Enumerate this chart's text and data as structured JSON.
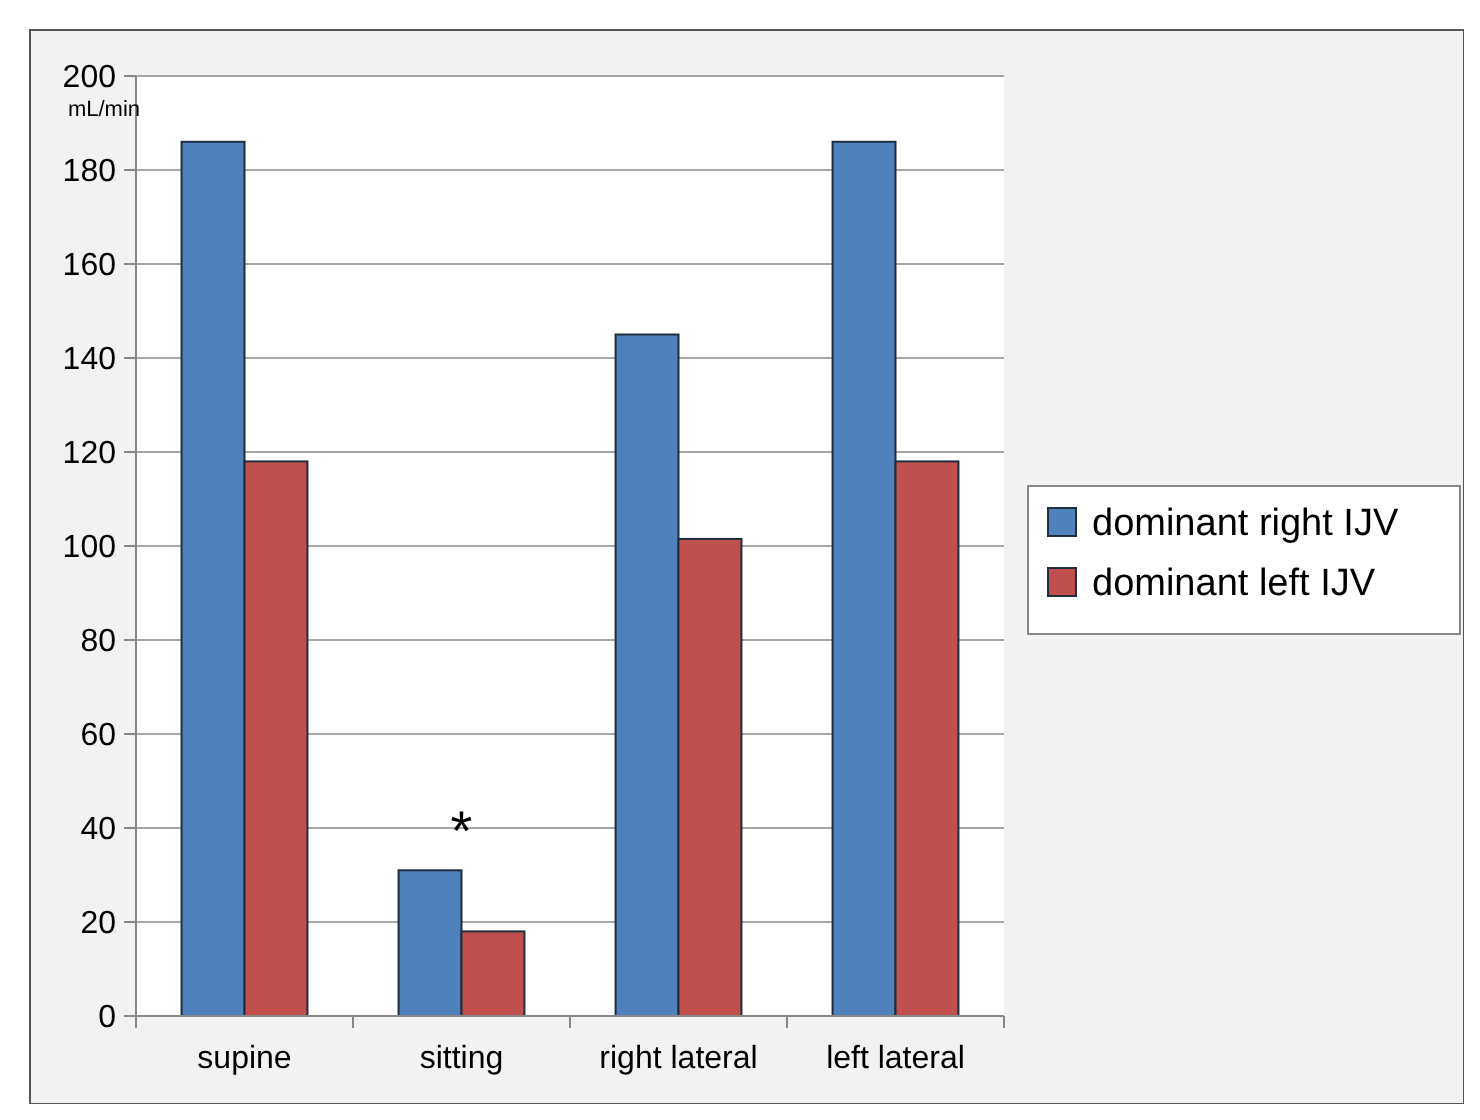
{
  "chart_data": {
    "type": "bar",
    "ylabel": "mL/min",
    "categories": [
      "supine",
      "sitting",
      "right lateral",
      "left lateral"
    ],
    "series": [
      {
        "name": "dominant right IJV",
        "color": "#4f81bd",
        "values": [
          186,
          31,
          145,
          186
        ]
      },
      {
        "name": "dominant left IJV",
        "color": "#c0504d",
        "values": [
          118,
          18,
          101.5,
          118
        ]
      }
    ],
    "ylim": [
      0,
      200
    ],
    "yticks": [
      0,
      20,
      40,
      60,
      80,
      100,
      120,
      140,
      160,
      180,
      200
    ],
    "grid": "y",
    "legend": "right",
    "annotations": [
      "*"
    ]
  }
}
